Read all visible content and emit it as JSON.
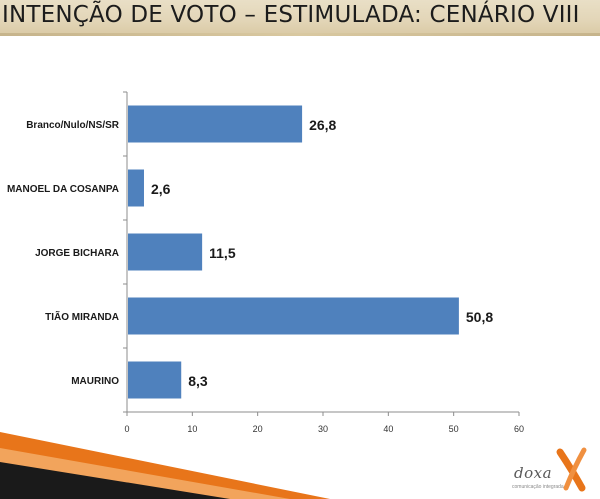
{
  "title": "INTENÇÃO DE VOTO – ESTIMULADA: CENÁRIO VIII",
  "colors": {
    "bar": "#4f81bd",
    "accent_orange": "#e8751a",
    "accent_dark": "#1a1a1a"
  },
  "logo": {
    "name": "doxa",
    "tagline": "comunicação integrada"
  },
  "chart_data": {
    "type": "bar",
    "orientation": "horizontal",
    "categories": [
      "Branco/Nulo/NS/SR",
      "MANOEL DA COSANPA",
      "JORGE BICHARA",
      "TIÃO MIRANDA",
      "MAURINO"
    ],
    "values": [
      26.8,
      2.6,
      11.5,
      50.8,
      8.3
    ],
    "value_labels": [
      "26,8",
      "2,6",
      "11,5",
      "50,8",
      "8,3"
    ],
    "xlim": [
      0,
      60
    ],
    "x_ticks": [
      0,
      10,
      20,
      30,
      40,
      50,
      60
    ],
    "xlabel": "",
    "ylabel": "",
    "grid": false,
    "legend": "none"
  }
}
